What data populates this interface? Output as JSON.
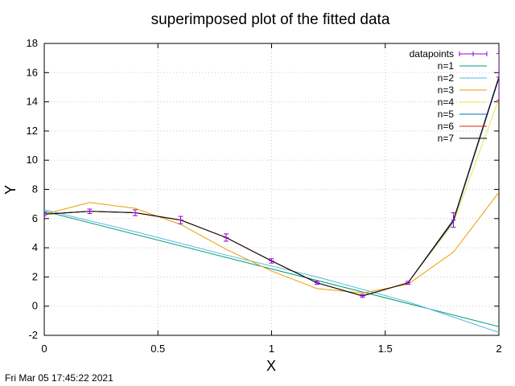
{
  "timestamp": "Fri Mar 05 17:45:22 2021",
  "chart_data": {
    "type": "line",
    "title": "superimposed plot of the fitted data",
    "xlabel": "X",
    "ylabel": "Y",
    "xlim": [
      0,
      2
    ],
    "ylim": [
      -2,
      18
    ],
    "xticks": [
      0,
      0.5,
      1,
      1.5,
      2
    ],
    "xtick_labels": [
      "0",
      "0.5",
      "1",
      "1.5",
      "2"
    ],
    "yticks": [
      -2,
      0,
      2,
      4,
      6,
      8,
      10,
      12,
      14,
      16,
      18
    ],
    "ytick_labels": [
      "-2",
      "0",
      "2",
      "4",
      "6",
      "8",
      "10",
      "12",
      "14",
      "16",
      "18"
    ],
    "grid": true,
    "legend_position": "top-right",
    "datapoints": {
      "name": "datapoints",
      "color": "#9400d3",
      "x": [
        0,
        0.2,
        0.4,
        0.6,
        0.8,
        1.0,
        1.2,
        1.4,
        1.6,
        1.8,
        2.0
      ],
      "y": [
        6.3,
        6.5,
        6.4,
        5.9,
        4.7,
        3.1,
        1.6,
        0.7,
        1.6,
        5.9,
        15.7
      ],
      "err": [
        0.1,
        0.15,
        0.2,
        0.25,
        0.25,
        0.15,
        0.1,
        0.1,
        0.1,
        0.5,
        1.6
      ]
    },
    "series": [
      {
        "name": "n=1",
        "color": "#009e73",
        "x": [
          0,
          2
        ],
        "y": [
          6.5,
          -1.4
        ]
      },
      {
        "name": "n=2",
        "color": "#56b4e9",
        "x": [
          0,
          0.4,
          0.8,
          1.2,
          1.6,
          2.0
        ],
        "y": [
          6.6,
          5.1,
          3.5,
          2.0,
          0.3,
          -1.8
        ]
      },
      {
        "name": "n=3",
        "color": "#e69f00",
        "x": [
          0,
          0.2,
          0.4,
          0.6,
          0.8,
          1.0,
          1.2,
          1.4,
          1.6,
          1.8,
          2.0
        ],
        "y": [
          6.3,
          7.1,
          6.7,
          5.6,
          3.9,
          2.4,
          1.2,
          0.9,
          1.5,
          3.7,
          7.8
        ]
      },
      {
        "name": "n=4",
        "color": "#f0e442",
        "x": [
          0,
          0.2,
          0.4,
          0.6,
          0.8,
          1.0,
          1.2,
          1.4,
          1.6,
          1.8,
          2.0
        ],
        "y": [
          6.3,
          6.5,
          6.4,
          5.9,
          4.7,
          3.1,
          1.6,
          0.7,
          1.6,
          5.7,
          14.2
        ]
      },
      {
        "name": "n=5",
        "color": "#0072b2",
        "x": [
          0,
          0.2,
          0.4,
          0.6,
          0.8,
          1.0,
          1.2,
          1.4,
          1.6,
          1.8,
          2.0
        ],
        "y": [
          6.3,
          6.5,
          6.4,
          5.9,
          4.7,
          3.1,
          1.6,
          0.7,
          1.6,
          5.8,
          15.6
        ]
      },
      {
        "name": "n=6",
        "color": "#e51e10",
        "x": [
          0,
          0.2,
          0.4,
          0.6,
          0.8,
          1.0,
          1.2,
          1.4,
          1.6,
          1.8,
          2.0
        ],
        "y": [
          6.3,
          6.5,
          6.4,
          5.9,
          4.7,
          3.1,
          1.6,
          0.7,
          1.6,
          5.9,
          15.7
        ]
      },
      {
        "name": "n=7",
        "color": "#000000",
        "x": [
          0,
          0.2,
          0.4,
          0.6,
          0.8,
          1.0,
          1.2,
          1.4,
          1.6,
          1.8,
          2.0
        ],
        "y": [
          6.3,
          6.5,
          6.4,
          5.9,
          4.7,
          3.1,
          1.6,
          0.7,
          1.6,
          5.9,
          15.7
        ]
      }
    ]
  }
}
